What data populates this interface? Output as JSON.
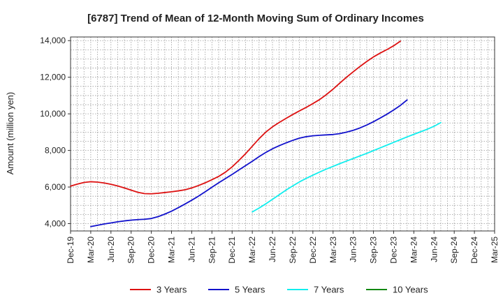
{
  "chart_data": {
    "type": "line",
    "title": "[6787]  Trend of Mean of 12-Month Moving Sum of Ordinary Incomes",
    "xlabel": "",
    "ylabel": "Amount (million yen)",
    "ylim": [
      3600,
      14200
    ],
    "yticks": [
      4000,
      6000,
      8000,
      10000,
      12000,
      14000
    ],
    "ytick_labels": [
      "4,000",
      "6,000",
      "8,000",
      "10,000",
      "12,000",
      "14,000"
    ],
    "x_start": "Dec-19",
    "x_end": "Mar-25",
    "xtick_labels": [
      "Dec-19",
      "Mar-20",
      "Jun-20",
      "Sep-20",
      "Dec-20",
      "Mar-21",
      "Jun-21",
      "Sep-21",
      "Dec-21",
      "Mar-22",
      "Jun-22",
      "Sep-22",
      "Dec-22",
      "Mar-23",
      "Jun-23",
      "Sep-23",
      "Dec-23",
      "Mar-24",
      "Jun-24",
      "Sep-24",
      "Dec-24",
      "Mar-25"
    ],
    "grid": true,
    "legend_position": "bottom",
    "series": [
      {
        "name": "3 Years",
        "color": "#dd1111",
        "start_month_index": 0,
        "values": [
          6050,
          6160,
          6250,
          6290,
          6270,
          6220,
          6150,
          6060,
          5950,
          5830,
          5710,
          5640,
          5630,
          5660,
          5700,
          5740,
          5790,
          5850,
          5950,
          6080,
          6230,
          6400,
          6580,
          6810,
          7100,
          7450,
          7820,
          8230,
          8640,
          9000,
          9290,
          9530,
          9750,
          9960,
          10160,
          10350,
          10560,
          10780,
          11050,
          11350,
          11680,
          12000,
          12300,
          12590,
          12860,
          13110,
          13320,
          13510,
          13720,
          13970
        ]
      },
      {
        "name": "5 Years",
        "color": "#1111cc",
        "start_month_index": 3,
        "values": [
          3840,
          3910,
          3980,
          4040,
          4100,
          4150,
          4190,
          4220,
          4240,
          4280,
          4380,
          4520,
          4680,
          4870,
          5070,
          5280,
          5500,
          5740,
          5990,
          6230,
          6460,
          6690,
          6930,
          7170,
          7410,
          7660,
          7890,
          8090,
          8260,
          8410,
          8550,
          8670,
          8750,
          8800,
          8830,
          8850,
          8870,
          8920,
          9000,
          9100,
          9230,
          9390,
          9570,
          9770,
          9980,
          10210,
          10460,
          10760
        ]
      },
      {
        "name": "7 Years",
        "color": "#11eeee",
        "start_month_index": 27,
        "values": [
          4640,
          4850,
          5080,
          5330,
          5580,
          5830,
          6060,
          6280,
          6470,
          6650,
          6820,
          6980,
          7130,
          7280,
          7420,
          7560,
          7700,
          7840,
          7990,
          8140,
          8290,
          8440,
          8590,
          8740,
          8880,
          9020,
          9160,
          9320,
          9520
        ]
      },
      {
        "name": "10 Years",
        "color": "#118811",
        "start_month_index": 0,
        "values": []
      }
    ]
  }
}
